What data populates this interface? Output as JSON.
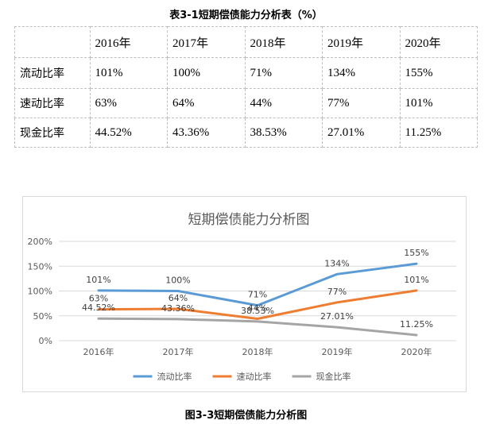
{
  "table_title": "表3-1短期偿债能力分析表（%）",
  "table": {
    "header": [
      "",
      "2016年",
      "2017年",
      "2018年",
      "2019年",
      "2020年"
    ],
    "rows": [
      {
        "label": "流动比率",
        "cells": [
          "101%",
          "100%",
          "71%",
          "134%",
          "155%"
        ]
      },
      {
        "label": "速动比率",
        "cells": [
          "63%",
          "64%",
          "44%",
          "77%",
          "101%"
        ]
      },
      {
        "label": "现金比率",
        "cells": [
          "44.52%",
          "43.36%",
          "38.53%",
          "27.01%",
          "11.25%"
        ]
      }
    ]
  },
  "chart_data": {
    "type": "line",
    "title": "短期偿债能力分析图",
    "categories": [
      "2016年",
      "2017年",
      "2018年",
      "2019年",
      "2020年"
    ],
    "ylim": [
      0,
      200
    ],
    "yticks": [
      0,
      50,
      100,
      150,
      200
    ],
    "ytick_labels": [
      "0%",
      "50%",
      "100%",
      "150%",
      "200%"
    ],
    "grid": true,
    "legend_position": "bottom",
    "series": [
      {
        "name": "流动比率",
        "color": "#5b9bd5",
        "values": [
          101,
          100,
          71,
          134,
          155
        ],
        "labels": [
          "101%",
          "100%",
          "71%",
          "134%",
          "155%"
        ]
      },
      {
        "name": "速动比率",
        "color": "#ed7d31",
        "values": [
          63,
          64,
          44,
          77,
          101
        ],
        "labels": [
          "63%",
          "64%",
          "44%",
          "77%",
          "101%"
        ]
      },
      {
        "name": "现金比率",
        "color": "#a5a5a5",
        "values": [
          44.52,
          43.36,
          38.53,
          27.01,
          11.25
        ],
        "labels": [
          "44.52%",
          "43.36%",
          "38.53%",
          "27.01%",
          "11.25%"
        ]
      }
    ]
  },
  "figure_caption": "图3-3短期偿债能力分析图"
}
